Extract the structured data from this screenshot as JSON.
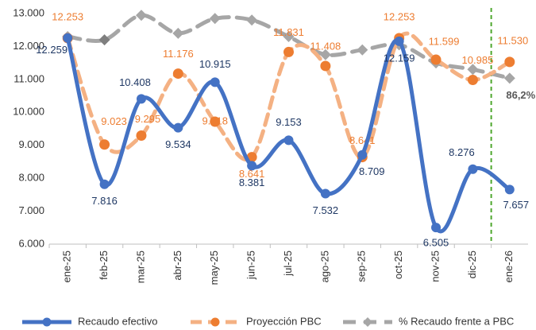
{
  "chart_data": {
    "type": "line",
    "categories": [
      "ene-25",
      "feb-25",
      "mar-25",
      "abr-25",
      "may-25",
      "jun-25",
      "jul-25",
      "ago-25",
      "sep-25",
      "oct-25",
      "nov-25",
      "dic-25",
      "ene-26"
    ],
    "series": [
      {
        "name": "Recaudo efectivo",
        "color": "#4472c4",
        "values": [
          12259,
          7816,
          10408,
          9534,
          10915,
          8381,
          9153,
          7532,
          8709,
          12159,
          6505,
          8276,
          7657
        ],
        "value_labels": [
          "12.259",
          "7.816",
          "10.408",
          "9.534",
          "10.915",
          "8.381",
          "9.153",
          "7.532",
          "8.709",
          "12.159",
          "6.505",
          "8.276",
          "7.657"
        ]
      },
      {
        "name": "Proyección PBC",
        "color": "#f4b183",
        "marker_color": "#ed7d31",
        "values": [
          12253,
          9023,
          9295,
          11176,
          9718,
          8641,
          11831,
          11408,
          8641,
          12253,
          11599,
          10985,
          11530
        ],
        "value_labels": [
          "12.253",
          "9.023",
          "9.295",
          "11.176",
          "9.718",
          "8.641",
          "11.831",
          "11.408",
          "8.641",
          "12.253",
          "11.599",
          "10.985",
          "11.530"
        ]
      },
      {
        "name": "% Recaudo frente a PBC",
        "color": "#a6a6a6",
        "axis": "y2",
        "values": [
          102.8,
          101.5,
          111.3,
          104.1,
          110.0,
          109.4,
          102.8,
          95.6,
          97.5,
          99.5,
          92.3,
          89.7,
          86.2
        ],
        "value_labels": [
          null,
          null,
          null,
          null,
          null,
          null,
          null,
          null,
          null,
          null,
          null,
          null,
          "86,2%"
        ]
      }
    ],
    "ylim": [
      6000,
      13000
    ],
    "yticks": [
      {
        "value": 6000,
        "label": "6.000"
      },
      {
        "value": 7000,
        "label": "7.000"
      },
      {
        "value": 8000,
        "label": "8.000"
      },
      {
        "value": 9000,
        "label": "9.000"
      },
      {
        "value": 10000,
        "label": "10.000"
      },
      {
        "value": 11000,
        "label": "11.000"
      },
      {
        "value": 12000,
        "label": "12.000"
      },
      {
        "value": 13000,
        "label": "13.000"
      }
    ],
    "y2lim": [
      20,
      112
    ],
    "grid": false,
    "legend": "bottom"
  }
}
